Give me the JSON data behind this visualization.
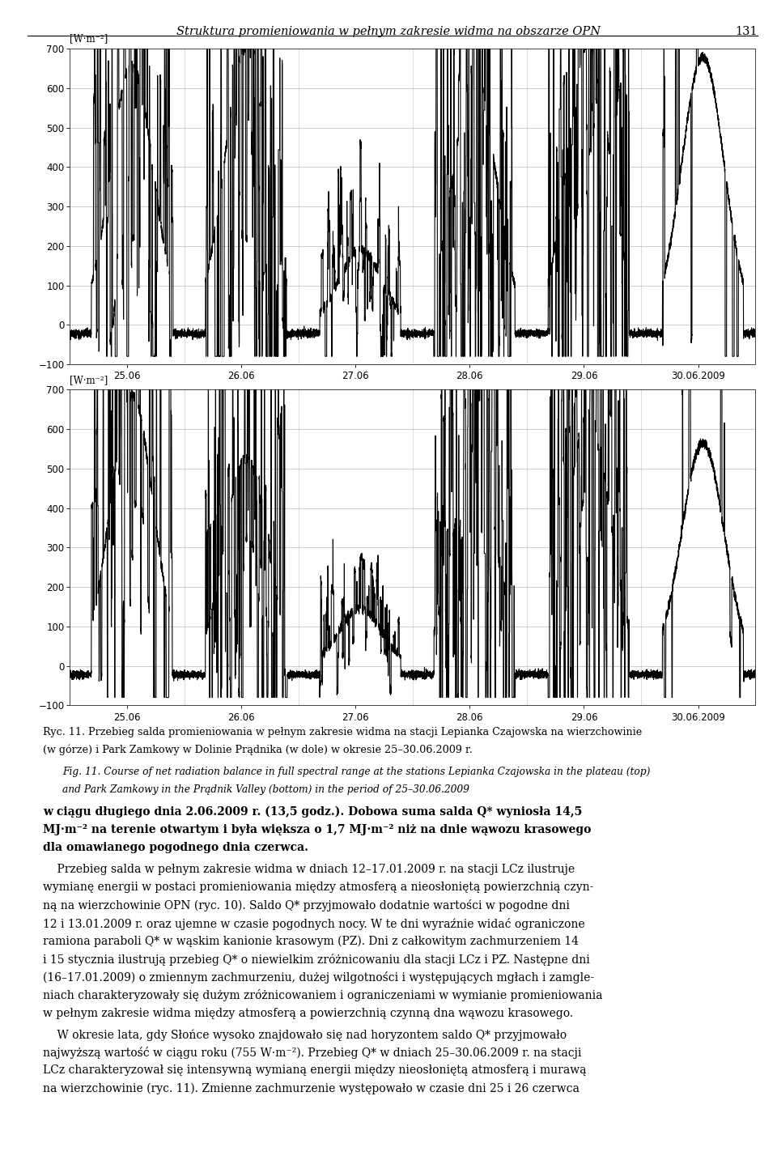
{
  "page_title": "Struktura promieniowania w pełnym zakresie widma na obszarze OPN",
  "page_number": "131",
  "ylabel": "[W·m⁻²]",
  "ylim": [
    -100,
    700
  ],
  "yticks": [
    -100,
    0,
    100,
    200,
    300,
    400,
    500,
    600,
    700
  ],
  "xtick_labels": [
    "25.06",
    "26.06",
    "27.06",
    "28.06",
    "29.06",
    "30.06.2009"
  ],
  "line_color": "#000000",
  "line_width": 0.8,
  "bg_color": "#ffffff",
  "grid_color": "#c0c0c0",
  "caption_pl_1": "Ryc. 11. Przebieg salda promieniowania w pełnym zakresie widma na stacji Lepianka Czajowska na wierzchowinie",
  "caption_pl_2": "(w górze) i Park Zamkowy w Dolinie Prądnika (w dole) w okresie 25–30.06.2009 r.",
  "caption_en_1": "Fig. 11. Course of net radiation balance in full spectral range at the stations Lepianka Czajowska in the plateau (top)",
  "caption_en_2": "and Park Zamkowy in the Prądnik Valley (bottom) in the period of 25–30.06.2009",
  "body_bold_1": "w ciągu długiego dnia 2.06.2009 r. (13,5 godz.). Dobowa suma salda ’Q’* wyniosła 14,5",
  "body_bold_2": "MJ·m⁻² na terenie otwartym i była większa o 1,7 MJ·m⁻² niż na dnie wąwozu krasowego",
  "body_bold_3": "dla omawianego pogodnego dnia czerwca.",
  "body_p2_l1": "    Przebieg salda w pełnym zakresie widma w dniach 12–17.01.2009 r. na stacji LCz ilustruje",
  "body_p2_l2": "wymianę energii w postaci promieniowania między atmosferą a nieosłoniętą powierzchnią czyn-",
  "body_p2_l3": "ną na wierzchowinie OPN (ryc. 10). Saldo Q* przyjmowało dodatnie wartości w pogodne dni",
  "body_p2_l4": "12 i 13.01.2009 r. oraz ujemne w czasie pogodnych nocy. W te dni wyraźnie widać ograniczone",
  "body_p2_l5": "ramiona paraboli Q* w wąskim kanionie krasowym (PZ). Dni z całkowitym zachmurzeniem 14",
  "body_p2_l6": "i 15 stycznia ilustrują przebieg Q* o niewielkim zróżnicowaniu dla stacji LCz i PZ. Następne dni",
  "body_p2_l7": "(16–17.01.2009) o zmiennym zachmurzeniu, dużej wilgotności i występujących mgłach i zamgle-",
  "body_p2_l8": "niach charakteryzowały się dużym zróżnicowaniem i ograniczeniami w wymianie promieniowania",
  "body_p2_l9": "w pełnym zakresie widma między atmosferą a powierzchnią czynną dna wąwozu krasowego.",
  "body_p3_l1": "    W okresie lata, gdy Słońce wysoko znajdowało się nad horyzontem saldo Q* przyjmowało",
  "body_p3_l2": "najwyższą wartość w ciągu roku (755 W·m⁻²). Przebieg Q* w dniach 25–30.06.2009 r. na stacji",
  "body_p3_l3": "LCz charakteryzował się intensywną wymianą energii między nieosłoniętą atmosferą i murawą",
  "body_p3_l4": "na wierzchowinie (ryc. 11). Zmienne zachmurzenie występowało w czasie dni 25 i 26 czerwca"
}
